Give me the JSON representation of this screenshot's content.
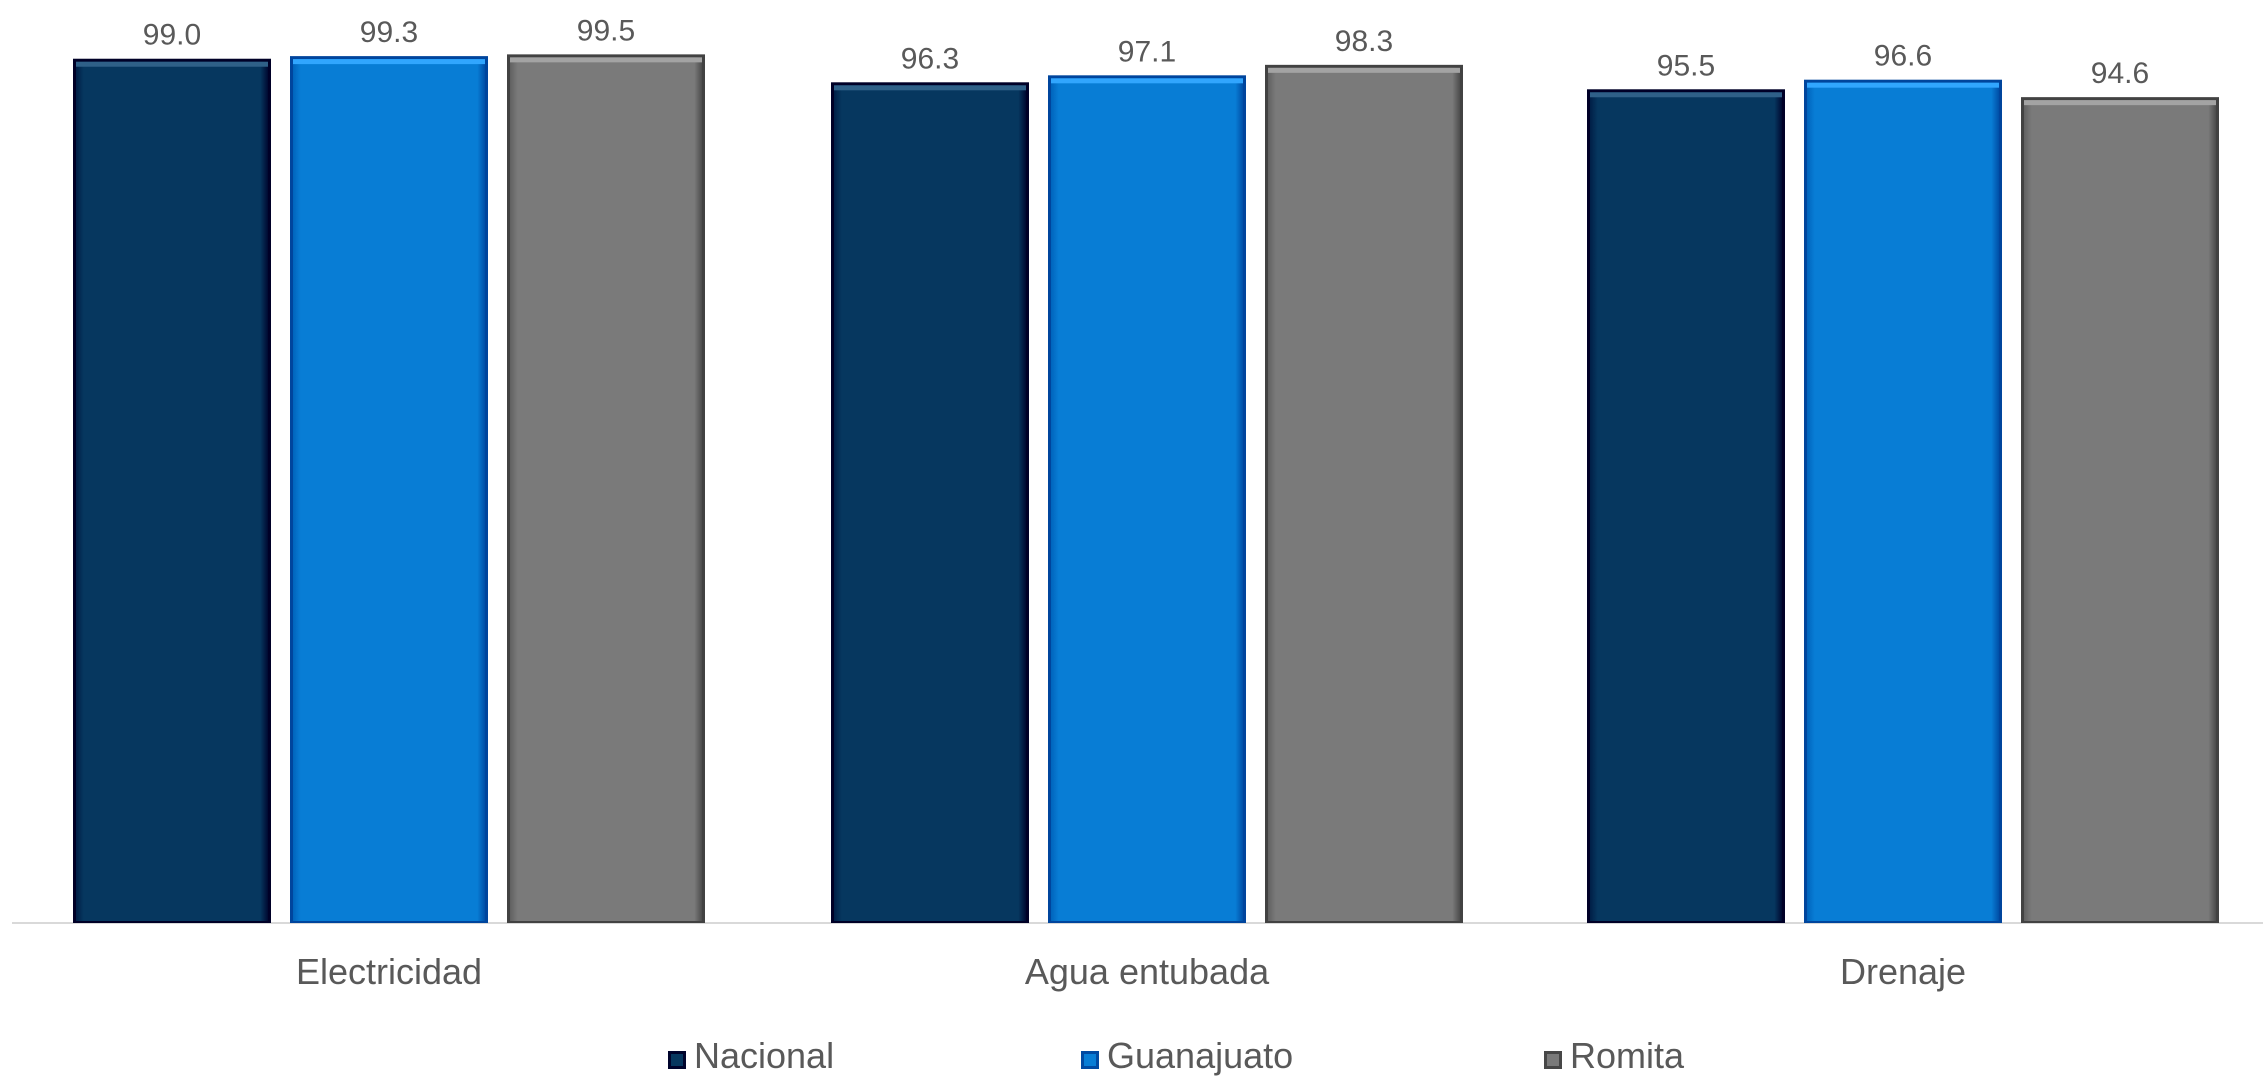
{
  "chart_data": {
    "type": "bar",
    "categories": [
      "Electricidad",
      "Agua entubada",
      "Drenaje"
    ],
    "series": [
      {
        "name": "Nacional",
        "values": [
          99.0,
          96.3,
          95.5
        ],
        "color": "#06375F"
      },
      {
        "name": "Guanajuato",
        "values": [
          99.3,
          97.1,
          96.6
        ],
        "color": "#087DD5"
      },
      {
        "name": "Romita",
        "values": [
          99.5,
          98.3,
          94.6
        ],
        "color": "#7A7A7A"
      }
    ],
    "value_labels": [
      [
        "99.0",
        "99.3",
        "99.5"
      ],
      [
        "96.3",
        "97.1",
        "98.3"
      ],
      [
        "95.5",
        "96.6",
        "94.6"
      ]
    ],
    "ylim": [
      0,
      100
    ],
    "grid": false,
    "legend_position": "bottom"
  }
}
